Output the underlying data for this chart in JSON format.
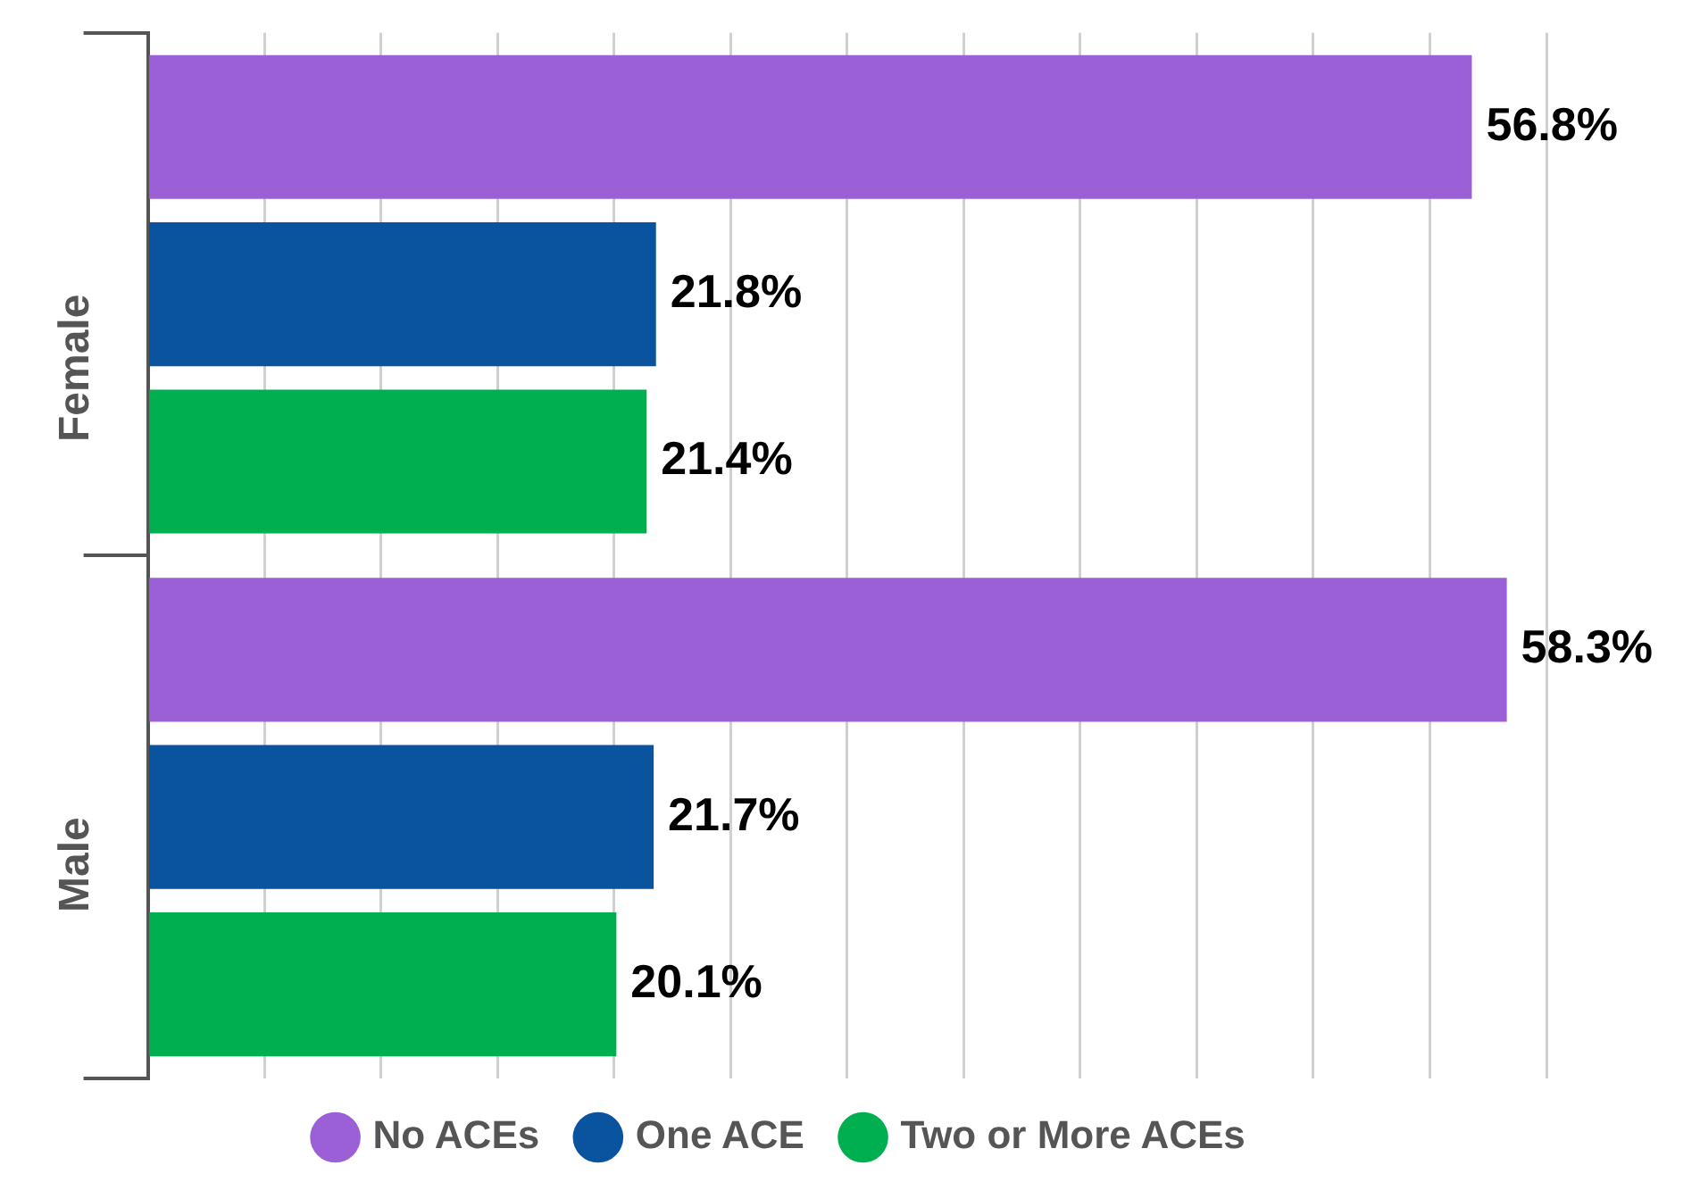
{
  "chart_data": {
    "type": "bar",
    "orientation": "horizontal",
    "categories": [
      "Female",
      "Male"
    ],
    "series": [
      {
        "name": "No ACEs",
        "color": "#9b5fd6",
        "values": [
          56.8,
          58.3
        ],
        "value_labels": [
          "56.8%",
          "58.3%"
        ]
      },
      {
        "name": "One ACE",
        "color": "#0a539e",
        "values": [
          21.8,
          21.7
        ],
        "value_labels": [
          "21.8%",
          "21.7%"
        ]
      },
      {
        "name": "Two or More ACEs",
        "color": "#00b050",
        "values": [
          21.4,
          20.1
        ],
        "value_labels": [
          "21.4%",
          "20.1%"
        ]
      }
    ],
    "xlim": [
      0,
      60
    ],
    "xticks": [
      {
        "value": 0,
        "label": null
      },
      {
        "value": 5,
        "label": null
      },
      {
        "value": 10,
        "label": null
      },
      {
        "value": 15,
        "label": null
      },
      {
        "value": 20,
        "label": null
      },
      {
        "value": 25,
        "label": null
      },
      {
        "value": 30,
        "label": null
      },
      {
        "value": 35,
        "label": null
      },
      {
        "value": 40,
        "label": null
      },
      {
        "value": 45,
        "label": null
      },
      {
        "value": 50,
        "label": null
      },
      {
        "value": 55,
        "label": null
      },
      {
        "value": 60,
        "label": null
      }
    ],
    "grid": "x",
    "legend": "bottom",
    "tick_labels": "y"
  }
}
